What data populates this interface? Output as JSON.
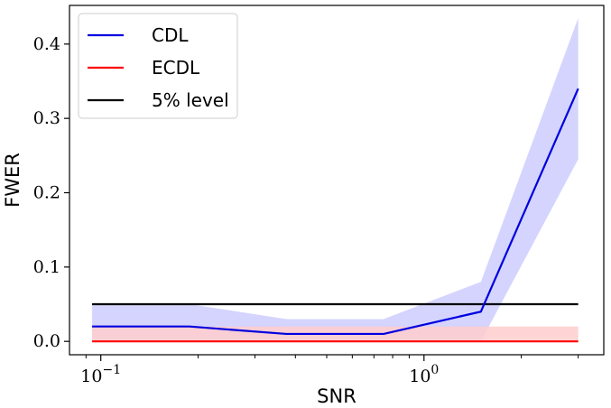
{
  "chart_data": {
    "type": "line",
    "xscale": "log",
    "xlabel": "SNR",
    "ylabel": "FWER",
    "xlim": [
      0.08,
      3.6
    ],
    "ylim": [
      -0.018,
      0.452
    ],
    "xticks_major": [
      {
        "value": 0.1,
        "base": "10",
        "exp": "−1"
      },
      {
        "value": 1,
        "base": "10",
        "exp": "0"
      }
    ],
    "yticks": [
      {
        "value": 0.0,
        "label": "0.0"
      },
      {
        "value": 0.1,
        "label": "0.1"
      },
      {
        "value": 0.2,
        "label": "0.2"
      },
      {
        "value": 0.3,
        "label": "0.3"
      },
      {
        "value": 0.4,
        "label": "0.4"
      }
    ],
    "grid": false,
    "legend_position": "top-left",
    "series": [
      {
        "name": "CDL",
        "color": "#0000e0",
        "band_color": "#ccccff",
        "x": [
          0.094,
          0.188,
          0.375,
          0.75,
          1.5,
          3.0
        ],
        "values": [
          0.02,
          0.02,
          0.01,
          0.01,
          0.04,
          0.34
        ],
        "lower": [
          0.0,
          0.0,
          0.0,
          0.0,
          0.0,
          0.245
        ],
        "upper": [
          0.05,
          0.05,
          0.03,
          0.03,
          0.08,
          0.435
        ]
      },
      {
        "name": "ECDL",
        "color": "#ff0000",
        "band_color": "#ffcccc",
        "x": [
          0.094,
          0.188,
          0.375,
          0.75,
          1.5,
          3.0
        ],
        "values": [
          0.0,
          0.0,
          0.0,
          0.0,
          0.0,
          0.0
        ],
        "lower": [
          0.0,
          0.0,
          0.0,
          0.0,
          0.0,
          0.0
        ],
        "upper": [
          0.02,
          0.02,
          0.02,
          0.02,
          0.02,
          0.02
        ]
      },
      {
        "name": "5% level",
        "color": "#000000",
        "x": [
          0.094,
          3.0
        ],
        "values": [
          0.05,
          0.05
        ]
      }
    ]
  }
}
